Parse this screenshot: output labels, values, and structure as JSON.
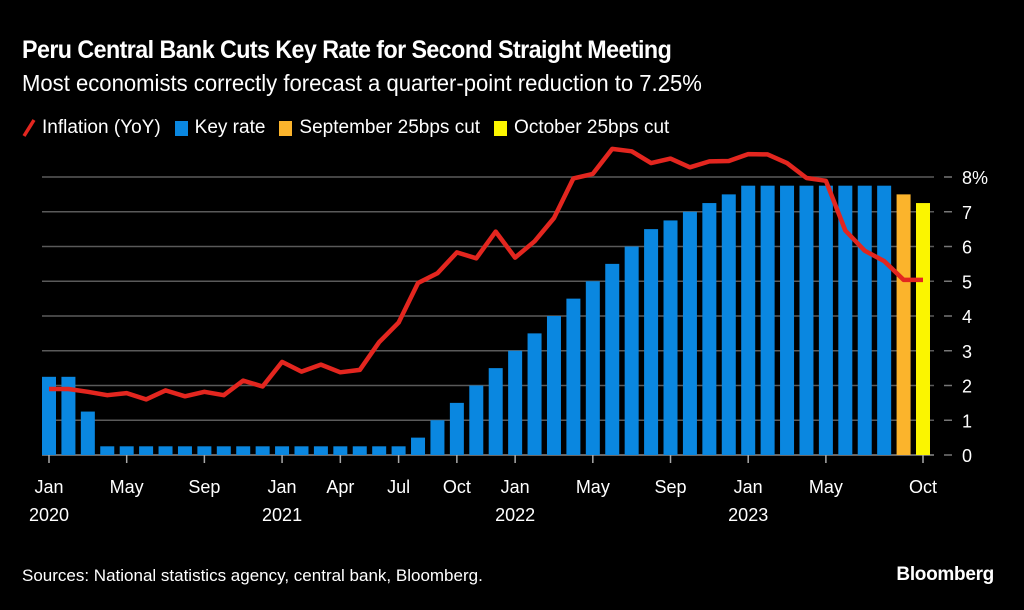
{
  "header": {
    "title": "Peru Central Bank Cuts Key Rate for Second Straight Meeting",
    "subtitle": "Most economists correctly forecast a quarter-point reduction to 7.25%"
  },
  "legend": [
    {
      "label": "Inflation (YoY)",
      "kind": "line",
      "color": "#e3261f"
    },
    {
      "label": "Key rate",
      "kind": "box",
      "color": "#0a87e0"
    },
    {
      "label": "September 25bps cut",
      "kind": "box",
      "color": "#fbb42c"
    },
    {
      "label": "October 25bps cut",
      "kind": "box",
      "color": "#fbf500"
    }
  ],
  "footer": {
    "source": "Sources: National statistics agency, central bank, Bloomberg.",
    "brand": "Bloomberg"
  },
  "chart_data": {
    "type": "bar",
    "title": "Peru Central Bank Cuts Key Rate for Second Straight Meeting",
    "subtitle": "Most economists correctly forecast a quarter-point reduction to 7.25%",
    "xlabel": "",
    "ylabel": "",
    "ylim": [
      0,
      8
    ],
    "y_ticks": [
      "0",
      "1",
      "2",
      "3",
      "4",
      "5",
      "6",
      "7",
      "8%"
    ],
    "y_axis_position": "right",
    "grid": true,
    "legend_position": "top-left",
    "x_tick_labels": [
      {
        "index": 0,
        "month": "Jan",
        "year": "2020"
      },
      {
        "index": 4,
        "month": "May",
        "year": ""
      },
      {
        "index": 8,
        "month": "Sep",
        "year": ""
      },
      {
        "index": 12,
        "month": "Jan",
        "year": "2021"
      },
      {
        "index": 15,
        "month": "Apr",
        "year": ""
      },
      {
        "index": 18,
        "month": "Jul",
        "year": ""
      },
      {
        "index": 21,
        "month": "Oct",
        "year": ""
      },
      {
        "index": 24,
        "month": "Jan",
        "year": "2022"
      },
      {
        "index": 28,
        "month": "May",
        "year": ""
      },
      {
        "index": 32,
        "month": "Sep",
        "year": ""
      },
      {
        "index": 36,
        "month": "Jan",
        "year": "2023"
      },
      {
        "index": 40,
        "month": "May",
        "year": ""
      },
      {
        "index": 45,
        "month": "Oct",
        "year": ""
      }
    ],
    "categories": [
      "2020-01",
      "2020-02",
      "2020-03",
      "2020-04",
      "2020-05",
      "2020-06",
      "2020-07",
      "2020-08",
      "2020-09",
      "2020-10",
      "2020-11",
      "2020-12",
      "2021-01",
      "2021-02",
      "2021-03",
      "2021-04",
      "2021-05",
      "2021-06",
      "2021-07",
      "2021-08",
      "2021-09",
      "2021-10",
      "2021-11",
      "2021-12",
      "2022-01",
      "2022-02",
      "2022-03",
      "2022-04",
      "2022-05",
      "2022-06",
      "2022-07",
      "2022-08",
      "2022-09",
      "2022-10",
      "2022-11",
      "2022-12",
      "2023-01",
      "2023-02",
      "2023-03",
      "2023-04",
      "2023-05",
      "2023-06",
      "2023-07",
      "2023-08",
      "2023-09",
      "2023-10"
    ],
    "series": [
      {
        "name": "Key rate",
        "type": "bar",
        "color": "#0a87e0",
        "highlight_colors": {
          "44": "#fbb42c",
          "45": "#fbf500"
        },
        "values": [
          2.25,
          2.25,
          1.25,
          0.25,
          0.25,
          0.25,
          0.25,
          0.25,
          0.25,
          0.25,
          0.25,
          0.25,
          0.25,
          0.25,
          0.25,
          0.25,
          0.25,
          0.25,
          0.25,
          0.5,
          1.0,
          1.5,
          2.0,
          2.5,
          3.0,
          3.5,
          4.0,
          4.5,
          5.0,
          5.5,
          6.0,
          6.5,
          6.75,
          7.0,
          7.25,
          7.5,
          7.75,
          7.75,
          7.75,
          7.75,
          7.75,
          7.75,
          7.75,
          7.75,
          7.5,
          7.25
        ]
      },
      {
        "name": "Inflation (YoY)",
        "type": "line",
        "color": "#e3261f",
        "values": [
          1.9,
          1.9,
          1.82,
          1.72,
          1.78,
          1.6,
          1.86,
          1.69,
          1.82,
          1.72,
          2.14,
          1.97,
          2.68,
          2.4,
          2.6,
          2.38,
          2.45,
          3.25,
          3.81,
          4.95,
          5.23,
          5.83,
          5.66,
          6.43,
          5.68,
          6.15,
          6.82,
          7.96,
          8.09,
          8.81,
          8.74,
          8.4,
          8.53,
          8.28,
          8.45,
          8.46,
          8.66,
          8.65,
          8.4,
          7.97,
          7.89,
          6.46,
          5.88,
          5.58,
          5.04,
          5.04
        ]
      }
    ]
  }
}
